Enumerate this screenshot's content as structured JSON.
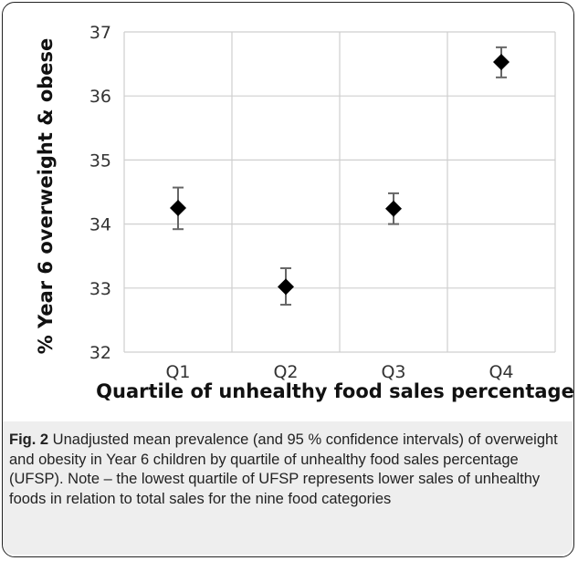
{
  "chart_data": {
    "type": "scatter",
    "categories": [
      "Q1",
      "Q2",
      "Q3",
      "Q4"
    ],
    "values": [
      34.25,
      33.02,
      34.24,
      36.53
    ],
    "ci_lower": [
      33.92,
      32.74,
      34.0,
      36.29
    ],
    "ci_upper": [
      34.57,
      33.31,
      34.48,
      36.76
    ],
    "xlabel": "Quartile of unhealthy food sales percentage",
    "ylabel": "% Year 6 overweight & obese",
    "ylim": [
      32,
      37
    ],
    "yticks": [
      "32",
      "33",
      "34",
      "35",
      "36",
      "37"
    ],
    "grid": true,
    "marker": "diamond",
    "colors": {
      "marker": "#000000",
      "errorbar": "#666666",
      "grid": "#cfcfcf"
    }
  },
  "caption": {
    "label": "Fig. 2",
    "text": " Unadjusted mean prevalence (and 95 % confidence intervals) of overweight and obesity in Year 6 children by quartile of unhealthy food sales percentage (UFSP). Note – the lowest quartile of UFSP represents lower sales of unhealthy foods in relation to total sales for the nine food categories"
  }
}
